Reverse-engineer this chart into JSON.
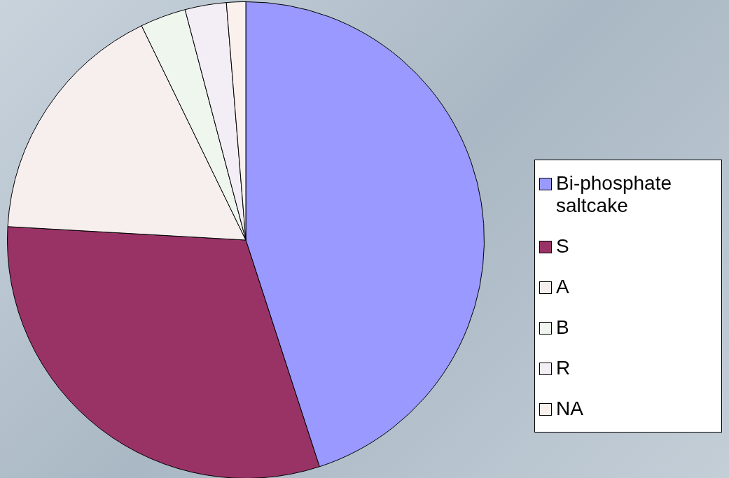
{
  "chart_data": {
    "type": "pie",
    "categories": [
      "Bi-phosphate saltcake",
      "S",
      "A",
      "B",
      "R",
      "NA"
    ],
    "values": [
      45,
      30.9,
      16.9,
      3.1,
      2.8,
      1.3
    ],
    "colors": [
      "#9999ff",
      "#993366",
      "#f7eeee",
      "#eef6ee",
      "#f3eef6",
      "#fbf1ec"
    ],
    "legend": "right"
  }
}
